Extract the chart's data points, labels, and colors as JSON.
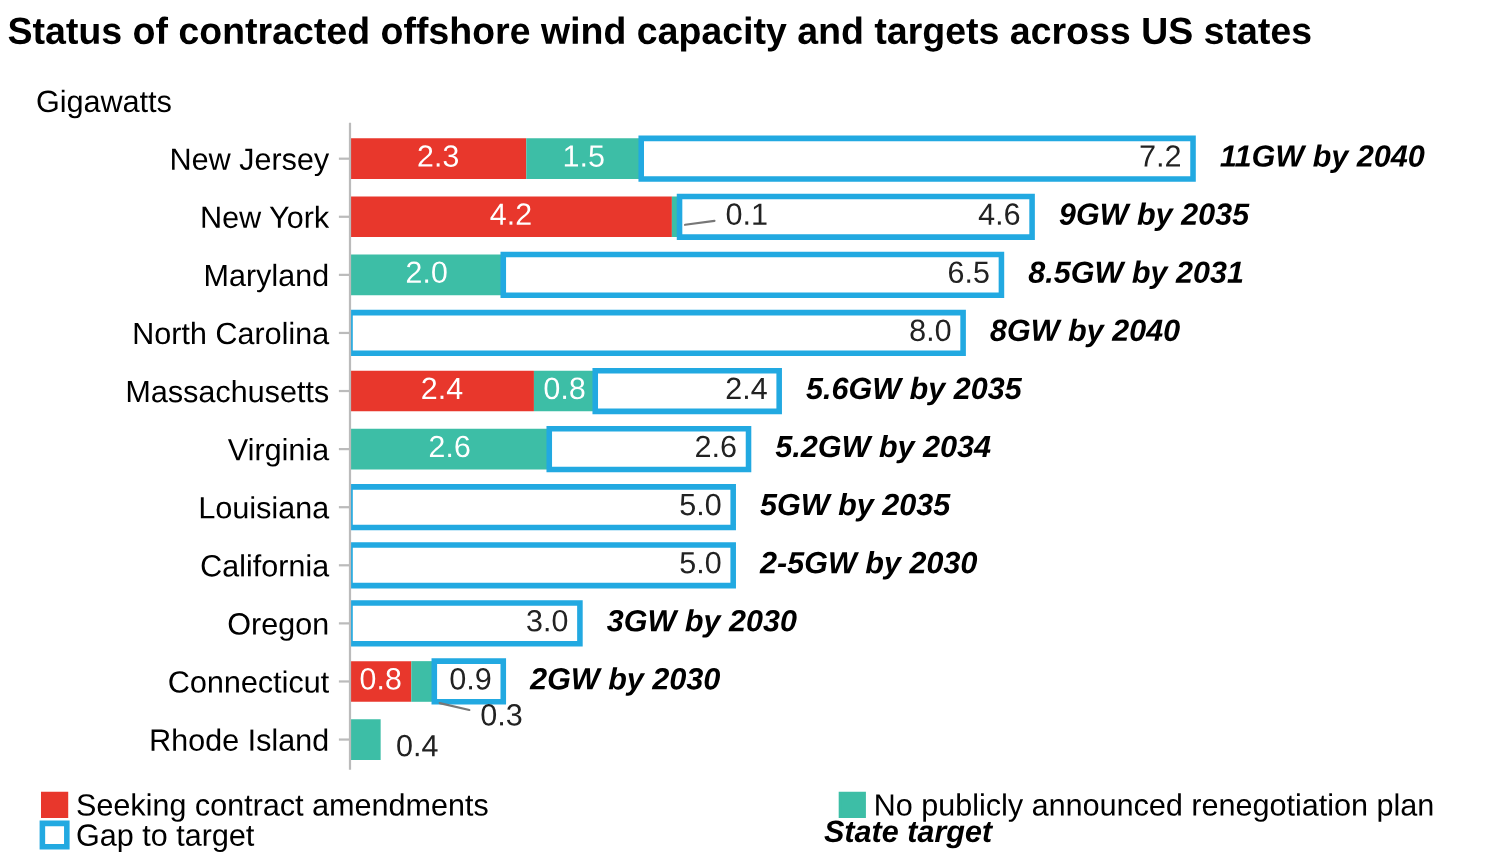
{
  "chart_data": {
    "type": "bar",
    "orientation": "horizontal",
    "stacked": true,
    "title": "Status of contracted offshore wind capacity and targets across US states",
    "ylabel": "Gigawatts",
    "categories": [
      "New Jersey",
      "New York",
      "Maryland",
      "North Carolina",
      "Massachusetts",
      "Virginia",
      "Louisiana",
      "California",
      "Oregon",
      "Connecticut",
      "Rhode Island"
    ],
    "series": [
      {
        "name": "Seeking contract amendments",
        "color": "#e8372c",
        "values": [
          2.3,
          4.2,
          0,
          0,
          2.4,
          0,
          0,
          0,
          0,
          0.8,
          0
        ],
        "value_labels": [
          "2.3",
          "4.2",
          null,
          null,
          "2.4",
          null,
          null,
          null,
          null,
          "0.8",
          null
        ]
      },
      {
        "name": "No publicly announced renegotiation plan",
        "color": "#3dbea6",
        "values": [
          1.5,
          0.1,
          2.0,
          0,
          0.8,
          2.6,
          0,
          0,
          0,
          0.3,
          0.4
        ],
        "value_labels": [
          "1.5",
          "0.1",
          "2.0",
          null,
          "0.8",
          "2.6",
          null,
          null,
          null,
          "0.3",
          "0.4"
        ]
      },
      {
        "name": "Gap to target",
        "color": "#22a9e1",
        "values": [
          7.2,
          4.6,
          6.5,
          8.0,
          2.4,
          2.6,
          5.0,
          5.0,
          3.0,
          0.9,
          0
        ],
        "value_labels": [
          "7.2",
          "4.6",
          "6.5",
          "8.0",
          "2.4",
          "2.6",
          "5.0",
          "5.0",
          "3.0",
          "0.9",
          null
        ]
      }
    ],
    "tick_labels": "y",
    "legend": "bottom",
    "annotations": [
      "11GW by 2040",
      "9GW by 2035",
      "8.5GW by 2031",
      "8GW by 2040",
      "5.6GW by 2035",
      "5.2GW by 2034",
      "5GW by 2035",
      "2-5GW by 2030",
      "3GW by 2030",
      "2GW by 2030",
      "State target"
    ]
  }
}
